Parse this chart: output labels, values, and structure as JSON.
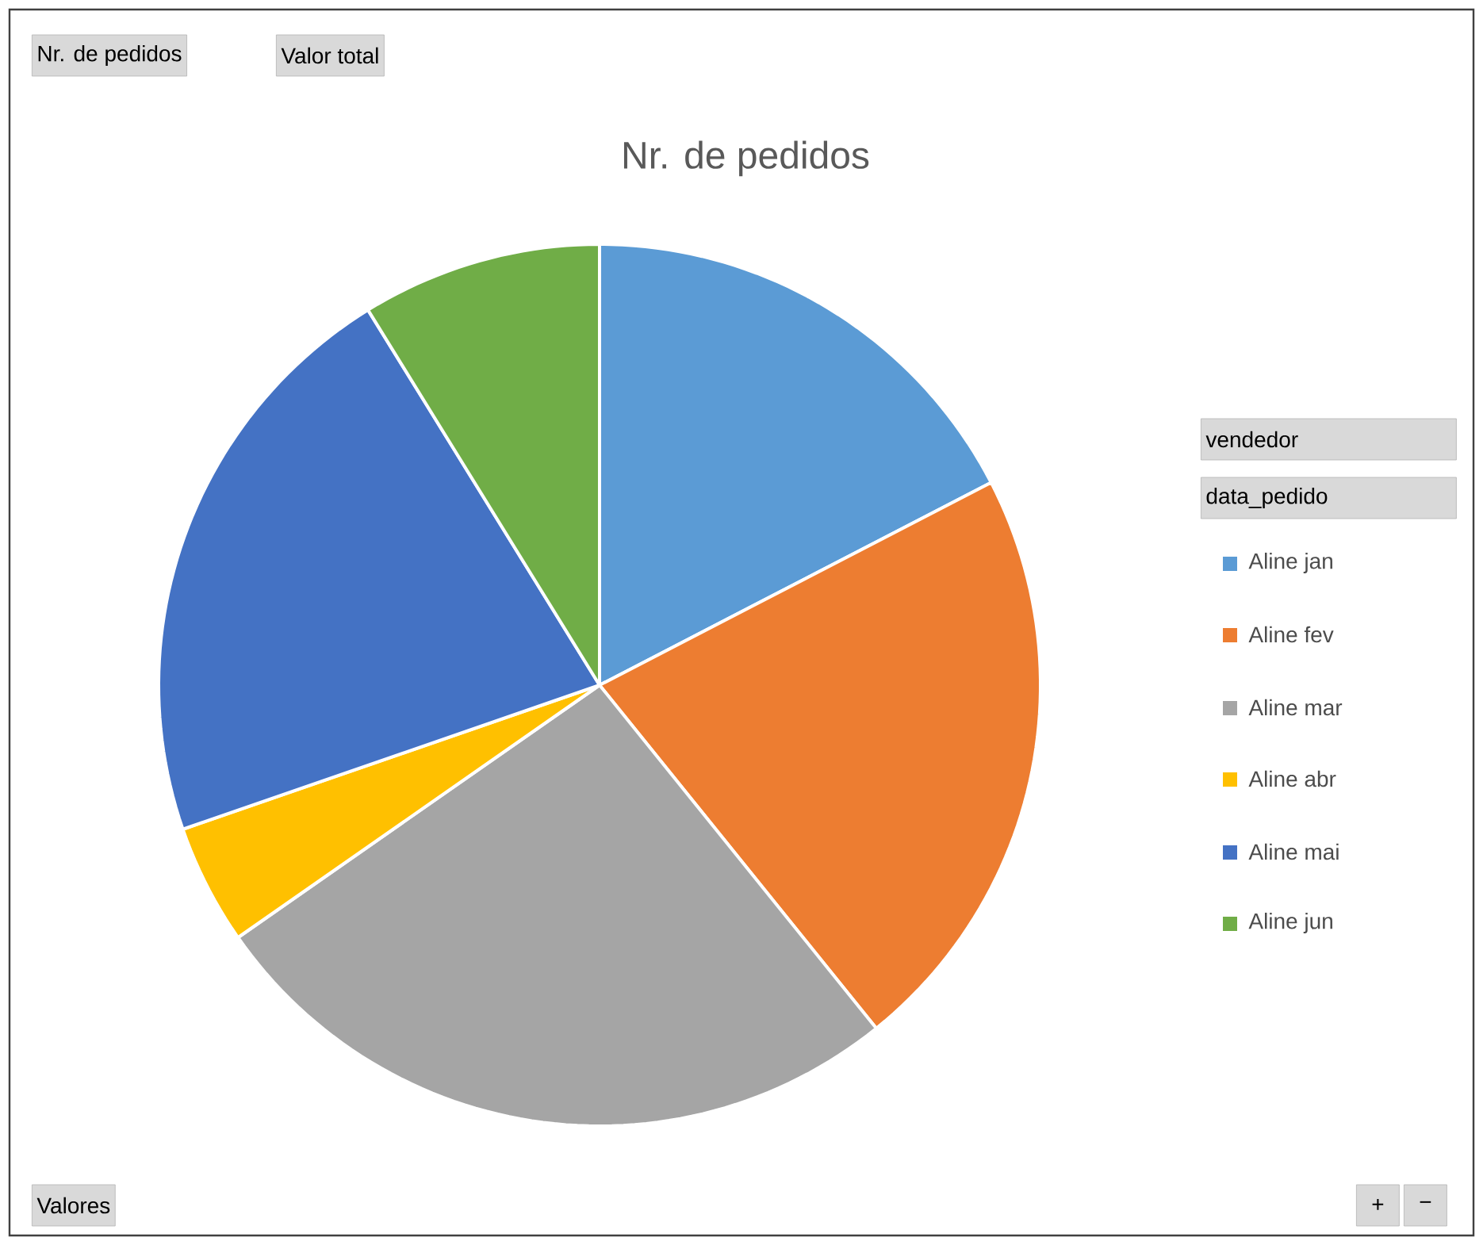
{
  "chart_data": {
    "type": "pie",
    "title": "Nr. de pedidos",
    "categories": [
      "Aline jan",
      "Aline fev",
      "Aline mar",
      "Aline abr",
      "Aline mai",
      "Aline jun"
    ],
    "values": [
      17.4,
      21.8,
      26.1,
      4.4,
      21.5,
      8.8
    ],
    "colors": [
      "#5b9bd5",
      "#ed7d31",
      "#a5a5a5",
      "#ffc000",
      "#4472c4",
      "#70ad47"
    ],
    "legend": "right",
    "annotations": [
      "Nr. de pedidos",
      "Valor total",
      "vendedor",
      "data_pedido",
      "Valores",
      "+",
      "−"
    ]
  }
}
